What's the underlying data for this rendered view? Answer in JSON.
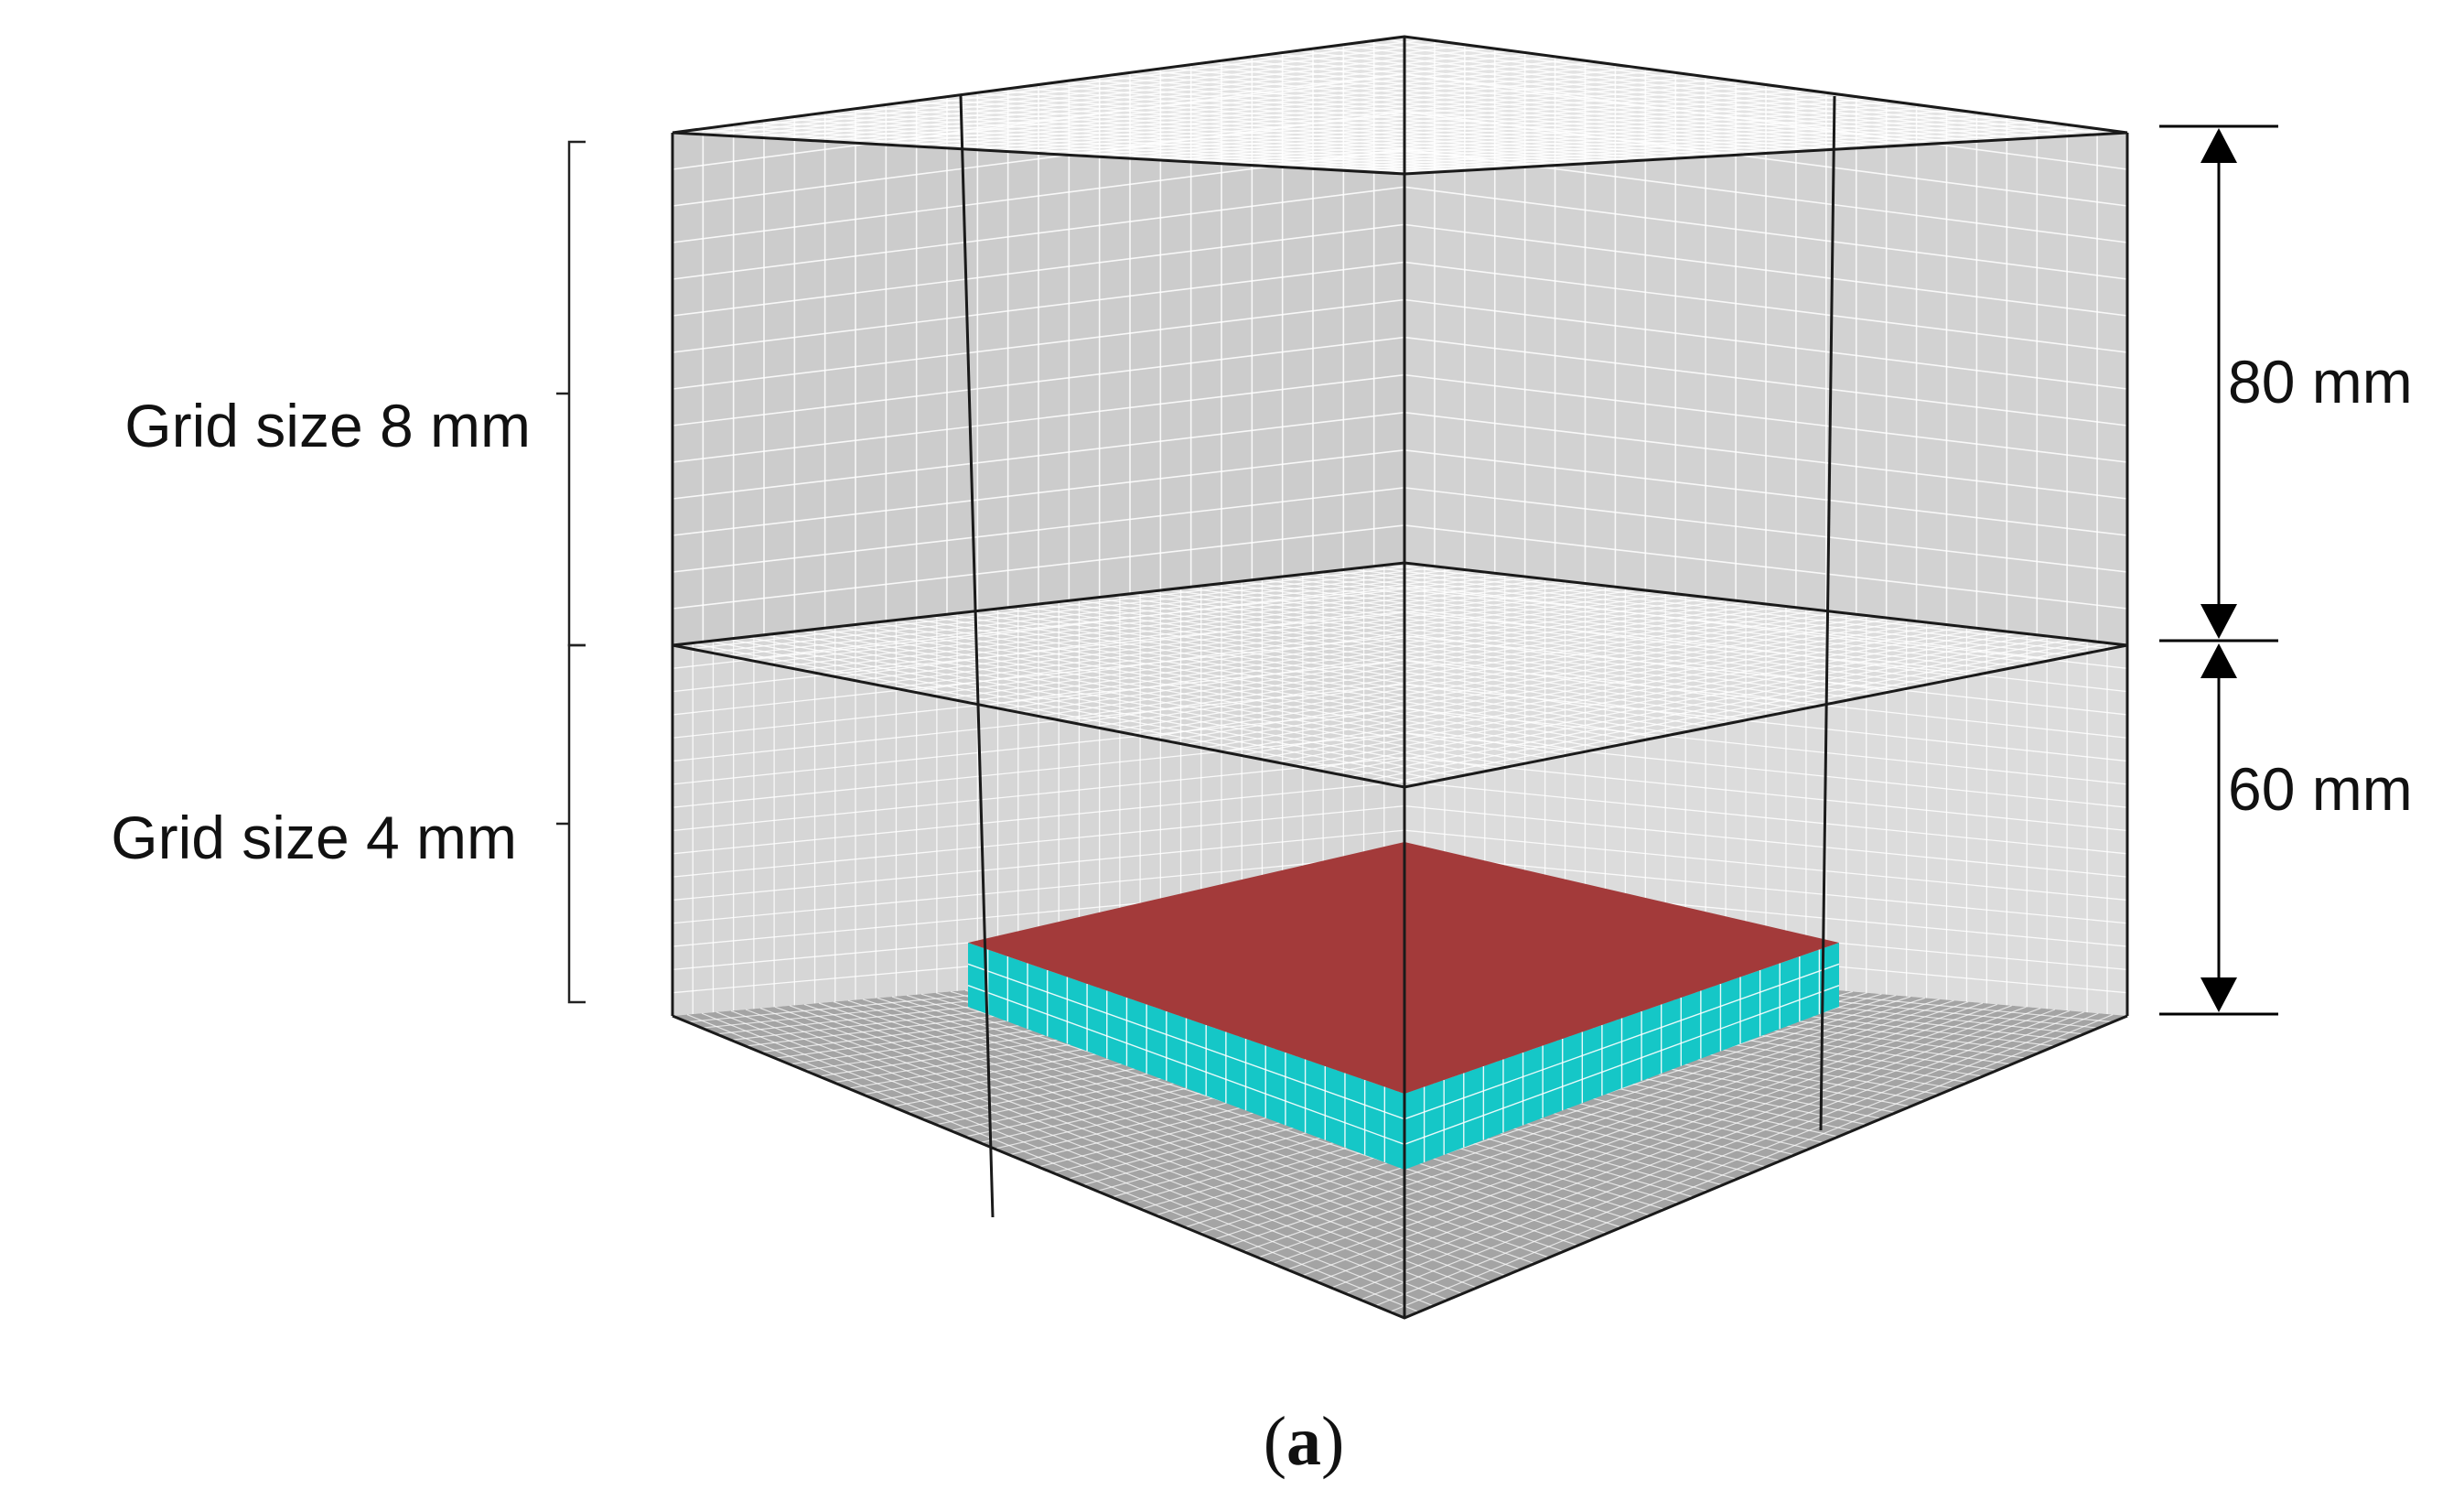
{
  "figure": {
    "labels": {
      "upper_grid": "Grid size 8 mm",
      "lower_grid": "Grid size 4 mm",
      "upper_height": "80 mm",
      "lower_height": "60 mm"
    },
    "caption": {
      "open": "(",
      "letter": "a",
      "close": ")"
    },
    "colors": {
      "panel_fill": "#c4c4c4",
      "floor_fill": "#9a9a9a",
      "grid_line": "#ffffff",
      "edge_line": "#1a1a1a",
      "slab_top": "#a33a3a",
      "slab_side": "#15c7c7",
      "arrow": "#000000"
    }
  }
}
